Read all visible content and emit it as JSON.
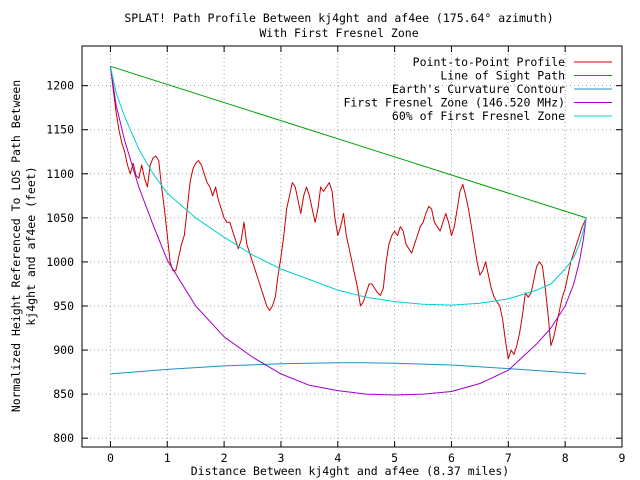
{
  "chart_data": {
    "type": "line",
    "title": "SPLAT! Path Profile Between kj4ght and af4ee (175.64° azimuth)",
    "subtitle": "With First Fresnel Zone",
    "xlabel": "Distance Between kj4ght and af4ee (8.37 miles)",
    "ylabel_line1": "Normalized Height Referenced To LOS Path Between",
    "ylabel_line2": "kj4ght and af4ee (feet)",
    "xlim": [
      -0.5,
      9
    ],
    "ylim": [
      790,
      1245
    ],
    "xticks": [
      "0",
      "1",
      "2",
      "3",
      "4",
      "5",
      "6",
      "7",
      "8",
      "9"
    ],
    "yticks": [
      "800",
      "850",
      "900",
      "950",
      "1000",
      "1050",
      "1100",
      "1150",
      "1200"
    ],
    "grid": true,
    "legend_position": "top-right",
    "series": [
      {
        "name": "Point-to-Point Profile",
        "color": "#cc0000",
        "points": [
          [
            0,
            1222
          ],
          [
            0.05,
            1195
          ],
          [
            0.1,
            1170
          ],
          [
            0.15,
            1150
          ],
          [
            0.2,
            1135
          ],
          [
            0.25,
            1125
          ],
          [
            0.3,
            1110
          ],
          [
            0.35,
            1100
          ],
          [
            0.4,
            1112
          ],
          [
            0.45,
            1098
          ],
          [
            0.5,
            1095
          ],
          [
            0.55,
            1110
          ],
          [
            0.6,
            1095
          ],
          [
            0.65,
            1085
          ],
          [
            0.7,
            1110
          ],
          [
            0.75,
            1118
          ],
          [
            0.8,
            1120
          ],
          [
            0.85,
            1115
          ],
          [
            0.9,
            1085
          ],
          [
            0.95,
            1060
          ],
          [
            1.0,
            1030
          ],
          [
            1.05,
            1000
          ],
          [
            1.1,
            990
          ],
          [
            1.15,
            990
          ],
          [
            1.2,
            1005
          ],
          [
            1.25,
            1020
          ],
          [
            1.3,
            1030
          ],
          [
            1.35,
            1060
          ],
          [
            1.4,
            1090
          ],
          [
            1.45,
            1105
          ],
          [
            1.5,
            1112
          ],
          [
            1.55,
            1115
          ],
          [
            1.6,
            1110
          ],
          [
            1.65,
            1100
          ],
          [
            1.7,
            1090
          ],
          [
            1.75,
            1085
          ],
          [
            1.8,
            1075
          ],
          [
            1.85,
            1085
          ],
          [
            1.9,
            1070
          ],
          [
            1.95,
            1060
          ],
          [
            2.0,
            1050
          ],
          [
            2.05,
            1045
          ],
          [
            2.1,
            1045
          ],
          [
            2.15,
            1035
          ],
          [
            2.2,
            1025
          ],
          [
            2.25,
            1015
          ],
          [
            2.3,
            1025
          ],
          [
            2.35,
            1045
          ],
          [
            2.4,
            1020
          ],
          [
            2.45,
            1010
          ],
          [
            2.5,
            1000
          ],
          [
            2.55,
            990
          ],
          [
            2.6,
            980
          ],
          [
            2.65,
            970
          ],
          [
            2.7,
            960
          ],
          [
            2.75,
            950
          ],
          [
            2.8,
            945
          ],
          [
            2.85,
            950
          ],
          [
            2.9,
            960
          ],
          [
            2.95,
            985
          ],
          [
            3.0,
            1005
          ],
          [
            3.05,
            1030
          ],
          [
            3.1,
            1060
          ],
          [
            3.15,
            1075
          ],
          [
            3.2,
            1090
          ],
          [
            3.25,
            1085
          ],
          [
            3.3,
            1070
          ],
          [
            3.35,
            1055
          ],
          [
            3.4,
            1075
          ],
          [
            3.45,
            1085
          ],
          [
            3.5,
            1075
          ],
          [
            3.55,
            1060
          ],
          [
            3.6,
            1045
          ],
          [
            3.65,
            1060
          ],
          [
            3.7,
            1085
          ],
          [
            3.75,
            1080
          ],
          [
            3.8,
            1085
          ],
          [
            3.85,
            1090
          ],
          [
            3.9,
            1080
          ],
          [
            3.95,
            1050
          ],
          [
            4.0,
            1030
          ],
          [
            4.05,
            1040
          ],
          [
            4.1,
            1055
          ],
          [
            4.15,
            1030
          ],
          [
            4.2,
            1015
          ],
          [
            4.25,
            1000
          ],
          [
            4.3,
            985
          ],
          [
            4.35,
            970
          ],
          [
            4.4,
            950
          ],
          [
            4.45,
            955
          ],
          [
            4.5,
            965
          ],
          [
            4.55,
            975
          ],
          [
            4.6,
            975
          ],
          [
            4.65,
            970
          ],
          [
            4.7,
            965
          ],
          [
            4.75,
            962
          ],
          [
            4.8,
            970
          ],
          [
            4.85,
            1000
          ],
          [
            4.9,
            1020
          ],
          [
            4.95,
            1030
          ],
          [
            5.0,
            1035
          ],
          [
            5.05,
            1030
          ],
          [
            5.1,
            1040
          ],
          [
            5.15,
            1035
          ],
          [
            5.2,
            1020
          ],
          [
            5.25,
            1015
          ],
          [
            5.3,
            1010
          ],
          [
            5.35,
            1020
          ],
          [
            5.4,
            1030
          ],
          [
            5.45,
            1040
          ],
          [
            5.5,
            1045
          ],
          [
            5.55,
            1055
          ],
          [
            5.6,
            1063
          ],
          [
            5.65,
            1060
          ],
          [
            5.7,
            1045
          ],
          [
            5.75,
            1040
          ],
          [
            5.8,
            1035
          ],
          [
            5.85,
            1045
          ],
          [
            5.9,
            1055
          ],
          [
            5.95,
            1045
          ],
          [
            6.0,
            1030
          ],
          [
            6.05,
            1040
          ],
          [
            6.1,
            1060
          ],
          [
            6.15,
            1080
          ],
          [
            6.2,
            1088
          ],
          [
            6.25,
            1075
          ],
          [
            6.3,
            1060
          ],
          [
            6.35,
            1040
          ],
          [
            6.4,
            1020
          ],
          [
            6.45,
            1000
          ],
          [
            6.5,
            985
          ],
          [
            6.55,
            990
          ],
          [
            6.6,
            1000
          ],
          [
            6.65,
            985
          ],
          [
            6.7,
            970
          ],
          [
            6.75,
            960
          ],
          [
            6.8,
            955
          ],
          [
            6.85,
            950
          ],
          [
            6.9,
            935
          ],
          [
            6.95,
            910
          ],
          [
            7.0,
            890
          ],
          [
            7.05,
            900
          ],
          [
            7.1,
            895
          ],
          [
            7.15,
            905
          ],
          [
            7.2,
            920
          ],
          [
            7.25,
            940
          ],
          [
            7.3,
            965
          ],
          [
            7.35,
            960
          ],
          [
            7.4,
            965
          ],
          [
            7.45,
            980
          ],
          [
            7.5,
            995
          ],
          [
            7.55,
            1000
          ],
          [
            7.6,
            995
          ],
          [
            7.65,
            970
          ],
          [
            7.7,
            940
          ],
          [
            7.75,
            905
          ],
          [
            7.8,
            915
          ],
          [
            7.85,
            930
          ],
          [
            7.9,
            945
          ],
          [
            7.95,
            960
          ],
          [
            8.0,
            970
          ],
          [
            8.05,
            985
          ],
          [
            8.1,
            1000
          ],
          [
            8.15,
            1010
          ],
          [
            8.2,
            1020
          ],
          [
            8.25,
            1030
          ],
          [
            8.3,
            1040
          ],
          [
            8.37,
            1050
          ]
        ]
      },
      {
        "name": "Line of Sight Path",
        "color": "#00a000",
        "points": [
          [
            0,
            1222
          ],
          [
            8.37,
            1050
          ]
        ]
      },
      {
        "name": "Earth's Curvature Contour",
        "color": "#1e90c8",
        "points": [
          [
            0,
            873
          ],
          [
            1,
            878
          ],
          [
            2,
            882
          ],
          [
            3,
            884.5
          ],
          [
            4,
            885.5
          ],
          [
            4.5,
            885.5
          ],
          [
            5,
            885
          ],
          [
            6,
            883
          ],
          [
            7,
            879
          ],
          [
            8,
            874.5
          ],
          [
            8.37,
            873
          ]
        ]
      },
      {
        "name": "First Fresnel Zone (146.520 MHz)",
        "color": "#a000c8",
        "points": [
          [
            0,
            1222
          ],
          [
            0.1,
            1178
          ],
          [
            0.25,
            1138
          ],
          [
            0.5,
            1085
          ],
          [
            0.75,
            1042
          ],
          [
            1.0,
            1002
          ],
          [
            1.5,
            950
          ],
          [
            2.0,
            915
          ],
          [
            2.5,
            892
          ],
          [
            3.0,
            873
          ],
          [
            3.5,
            860
          ],
          [
            4.0,
            854
          ],
          [
            4.5,
            850
          ],
          [
            5.0,
            849
          ],
          [
            5.5,
            850
          ],
          [
            6.0,
            853
          ],
          [
            6.5,
            862
          ],
          [
            7.0,
            877
          ],
          [
            7.5,
            907
          ],
          [
            7.75,
            925
          ],
          [
            8.0,
            950
          ],
          [
            8.15,
            975
          ],
          [
            8.25,
            1000
          ],
          [
            8.32,
            1025
          ],
          [
            8.37,
            1050
          ]
        ]
      },
      {
        "name": "60% of First Fresnel Zone",
        "color": "#00d0d0",
        "points": [
          [
            0,
            1222
          ],
          [
            0.1,
            1192
          ],
          [
            0.25,
            1165
          ],
          [
            0.5,
            1128
          ],
          [
            0.75,
            1100
          ],
          [
            1.0,
            1078
          ],
          [
            1.5,
            1050
          ],
          [
            2.0,
            1028
          ],
          [
            2.5,
            1008
          ],
          [
            3.0,
            992
          ],
          [
            3.5,
            980
          ],
          [
            4.0,
            968
          ],
          [
            4.5,
            960
          ],
          [
            5.0,
            955
          ],
          [
            5.5,
            952
          ],
          [
            6.0,
            951
          ],
          [
            6.5,
            953
          ],
          [
            7.0,
            958
          ],
          [
            7.5,
            968
          ],
          [
            7.75,
            975
          ],
          [
            8.0,
            992
          ],
          [
            8.15,
            1005
          ],
          [
            8.25,
            1020
          ],
          [
            8.32,
            1035
          ],
          [
            8.37,
            1050
          ]
        ]
      }
    ]
  }
}
